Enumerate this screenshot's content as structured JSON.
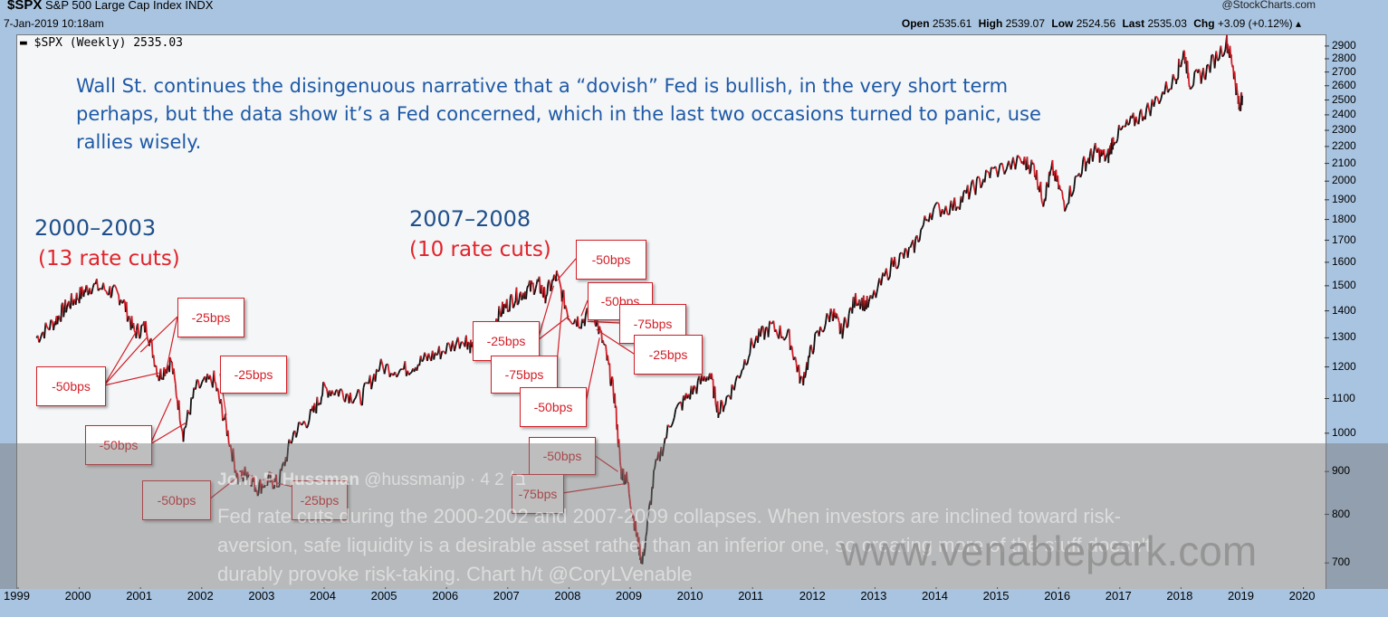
{
  "header": {
    "symbol": "$SPX",
    "index_name": "S&P 500 Large Cap Index  INDX",
    "datetime": "7-Jan-2019 10:18am",
    "source": "@StockCharts.com",
    "open_label": "Open",
    "open": "2535.61",
    "high_label": "High",
    "high": "2539.07",
    "low_label": "Low",
    "low": "2524.56",
    "last_label": "Last",
    "last": "2535.03",
    "chg_label": "Chg",
    "chg": "+3.09 (+0.12%) ▴"
  },
  "legend": "▬ $SPX (Weekly) 2535.03",
  "annotation": "Wall St. continues the disingenuous narrative that a “dovish” Fed is bullish, in the very short term perhaps, but the data show it’s a Fed concerned, which in the last two occasions turned to panic, use rallies wisely.",
  "eras": [
    {
      "period": "2000–2003",
      "cuts": "(13 rate cuts)"
    },
    {
      "period": "2007–2008",
      "cuts": "(10 rate cuts)"
    }
  ],
  "rate_cut_labels": [
    "-50bps",
    "-25bps",
    "-25bps",
    "-50bps",
    "-50bps",
    "-25bps",
    "-25bps",
    "-75bps",
    "-50bps",
    "-50bps",
    "-50bps",
    "-75bps",
    "-25bps",
    "-50bps",
    "-75bps"
  ],
  "tweet": {
    "name": "John P. Hussman",
    "handle": "@hussmanjp · 4 ב׳ 2",
    "text": "Fed rate cuts during the 2000-2002 and 2007-2009 collapses. When investors are inclined toward risk-aversion, safe liquidity is a desirable asset rather than an inferior one, so creating more of the stuff doesn't durably provoke risk-taking. Chart h/t @CoryLVenable"
  },
  "watermark": "www.venablepark.com",
  "colors": {
    "line_up": "#111111",
    "line_down": "#d21f27",
    "annotation": "#1f5aa6",
    "cuts": "#e0242b"
  },
  "chart_data": {
    "type": "line",
    "title": "$SPX (Weekly) 2535.03",
    "y_scale": "log",
    "ylim": [
      650,
      2950
    ],
    "y_ticks": [
      700,
      800,
      900,
      1000,
      1100,
      1200,
      1300,
      1400,
      1500,
      1600,
      1700,
      1800,
      1900,
      2000,
      2100,
      2200,
      2300,
      2400,
      2500,
      2600,
      2700,
      2800,
      2900
    ],
    "x_ticks": [
      "1999",
      "2000",
      "2001",
      "2002",
      "2003",
      "2004",
      "2005",
      "2006",
      "2007",
      "2008",
      "2009",
      "2010",
      "2011",
      "2012",
      "2013",
      "2014",
      "2015",
      "2016",
      "2017",
      "2018",
      "2019",
      "2020"
    ],
    "series": [
      {
        "x": [
          1999.3,
          1999.6,
          1999.8,
          2000.0,
          2000.2,
          2000.5,
          2000.7,
          2000.9,
          2001.1,
          2001.3,
          2001.5,
          2001.7,
          2001.9,
          2002.2,
          2002.4,
          2002.6,
          2002.75,
          2002.9,
          2003.1,
          2003.25,
          2003.5,
          2003.8,
          2004.0,
          2004.3,
          2004.6,
          2004.9,
          2005.3,
          2005.6,
          2005.9,
          2006.3,
          2006.45,
          2006.7,
          2006.9,
          2007.1,
          2007.3,
          2007.5,
          2007.6,
          2007.8,
          2008.0,
          2008.2,
          2008.4,
          2008.6,
          2008.75,
          2008.85,
          2008.95,
          2009.1,
          2009.2,
          2009.4,
          2009.7,
          2010.0,
          2010.3,
          2010.45,
          2010.7,
          2011.0,
          2011.3,
          2011.6,
          2011.8,
          2012.0,
          2012.3,
          2012.45,
          2012.7,
          2012.9,
          2013.3,
          2013.6,
          2013.9,
          2014.3,
          2014.6,
          2014.9,
          2015.4,
          2015.6,
          2015.75,
          2015.9,
          2016.1,
          2016.4,
          2016.6,
          2016.8,
          2016.9,
          2017.2,
          2017.5,
          2017.9,
          2018.05,
          2018.15,
          2018.4,
          2018.75,
          2018.85,
          2018.95,
          2019.0
        ],
        "y": [
          1300,
          1360,
          1420,
          1460,
          1500,
          1480,
          1450,
          1320,
          1340,
          1170,
          1220,
          1000,
          1130,
          1160,
          1020,
          880,
          900,
          860,
          880,
          870,
          1000,
          1050,
          1130,
          1120,
          1100,
          1200,
          1190,
          1220,
          1250,
          1300,
          1260,
          1330,
          1400,
          1450,
          1480,
          1510,
          1460,
          1540,
          1380,
          1360,
          1400,
          1250,
          1100,
          900,
          880,
          760,
          700,
          900,
          1050,
          1120,
          1180,
          1060,
          1140,
          1280,
          1340,
          1300,
          1150,
          1280,
          1400,
          1320,
          1450,
          1420,
          1600,
          1650,
          1840,
          1870,
          1960,
          2050,
          2110,
          2080,
          1900,
          2070,
          1880,
          2090,
          2170,
          2130,
          2250,
          2350,
          2450,
          2650,
          2850,
          2620,
          2700,
          2930,
          2750,
          2450,
          2530
        ]
      }
    ]
  }
}
